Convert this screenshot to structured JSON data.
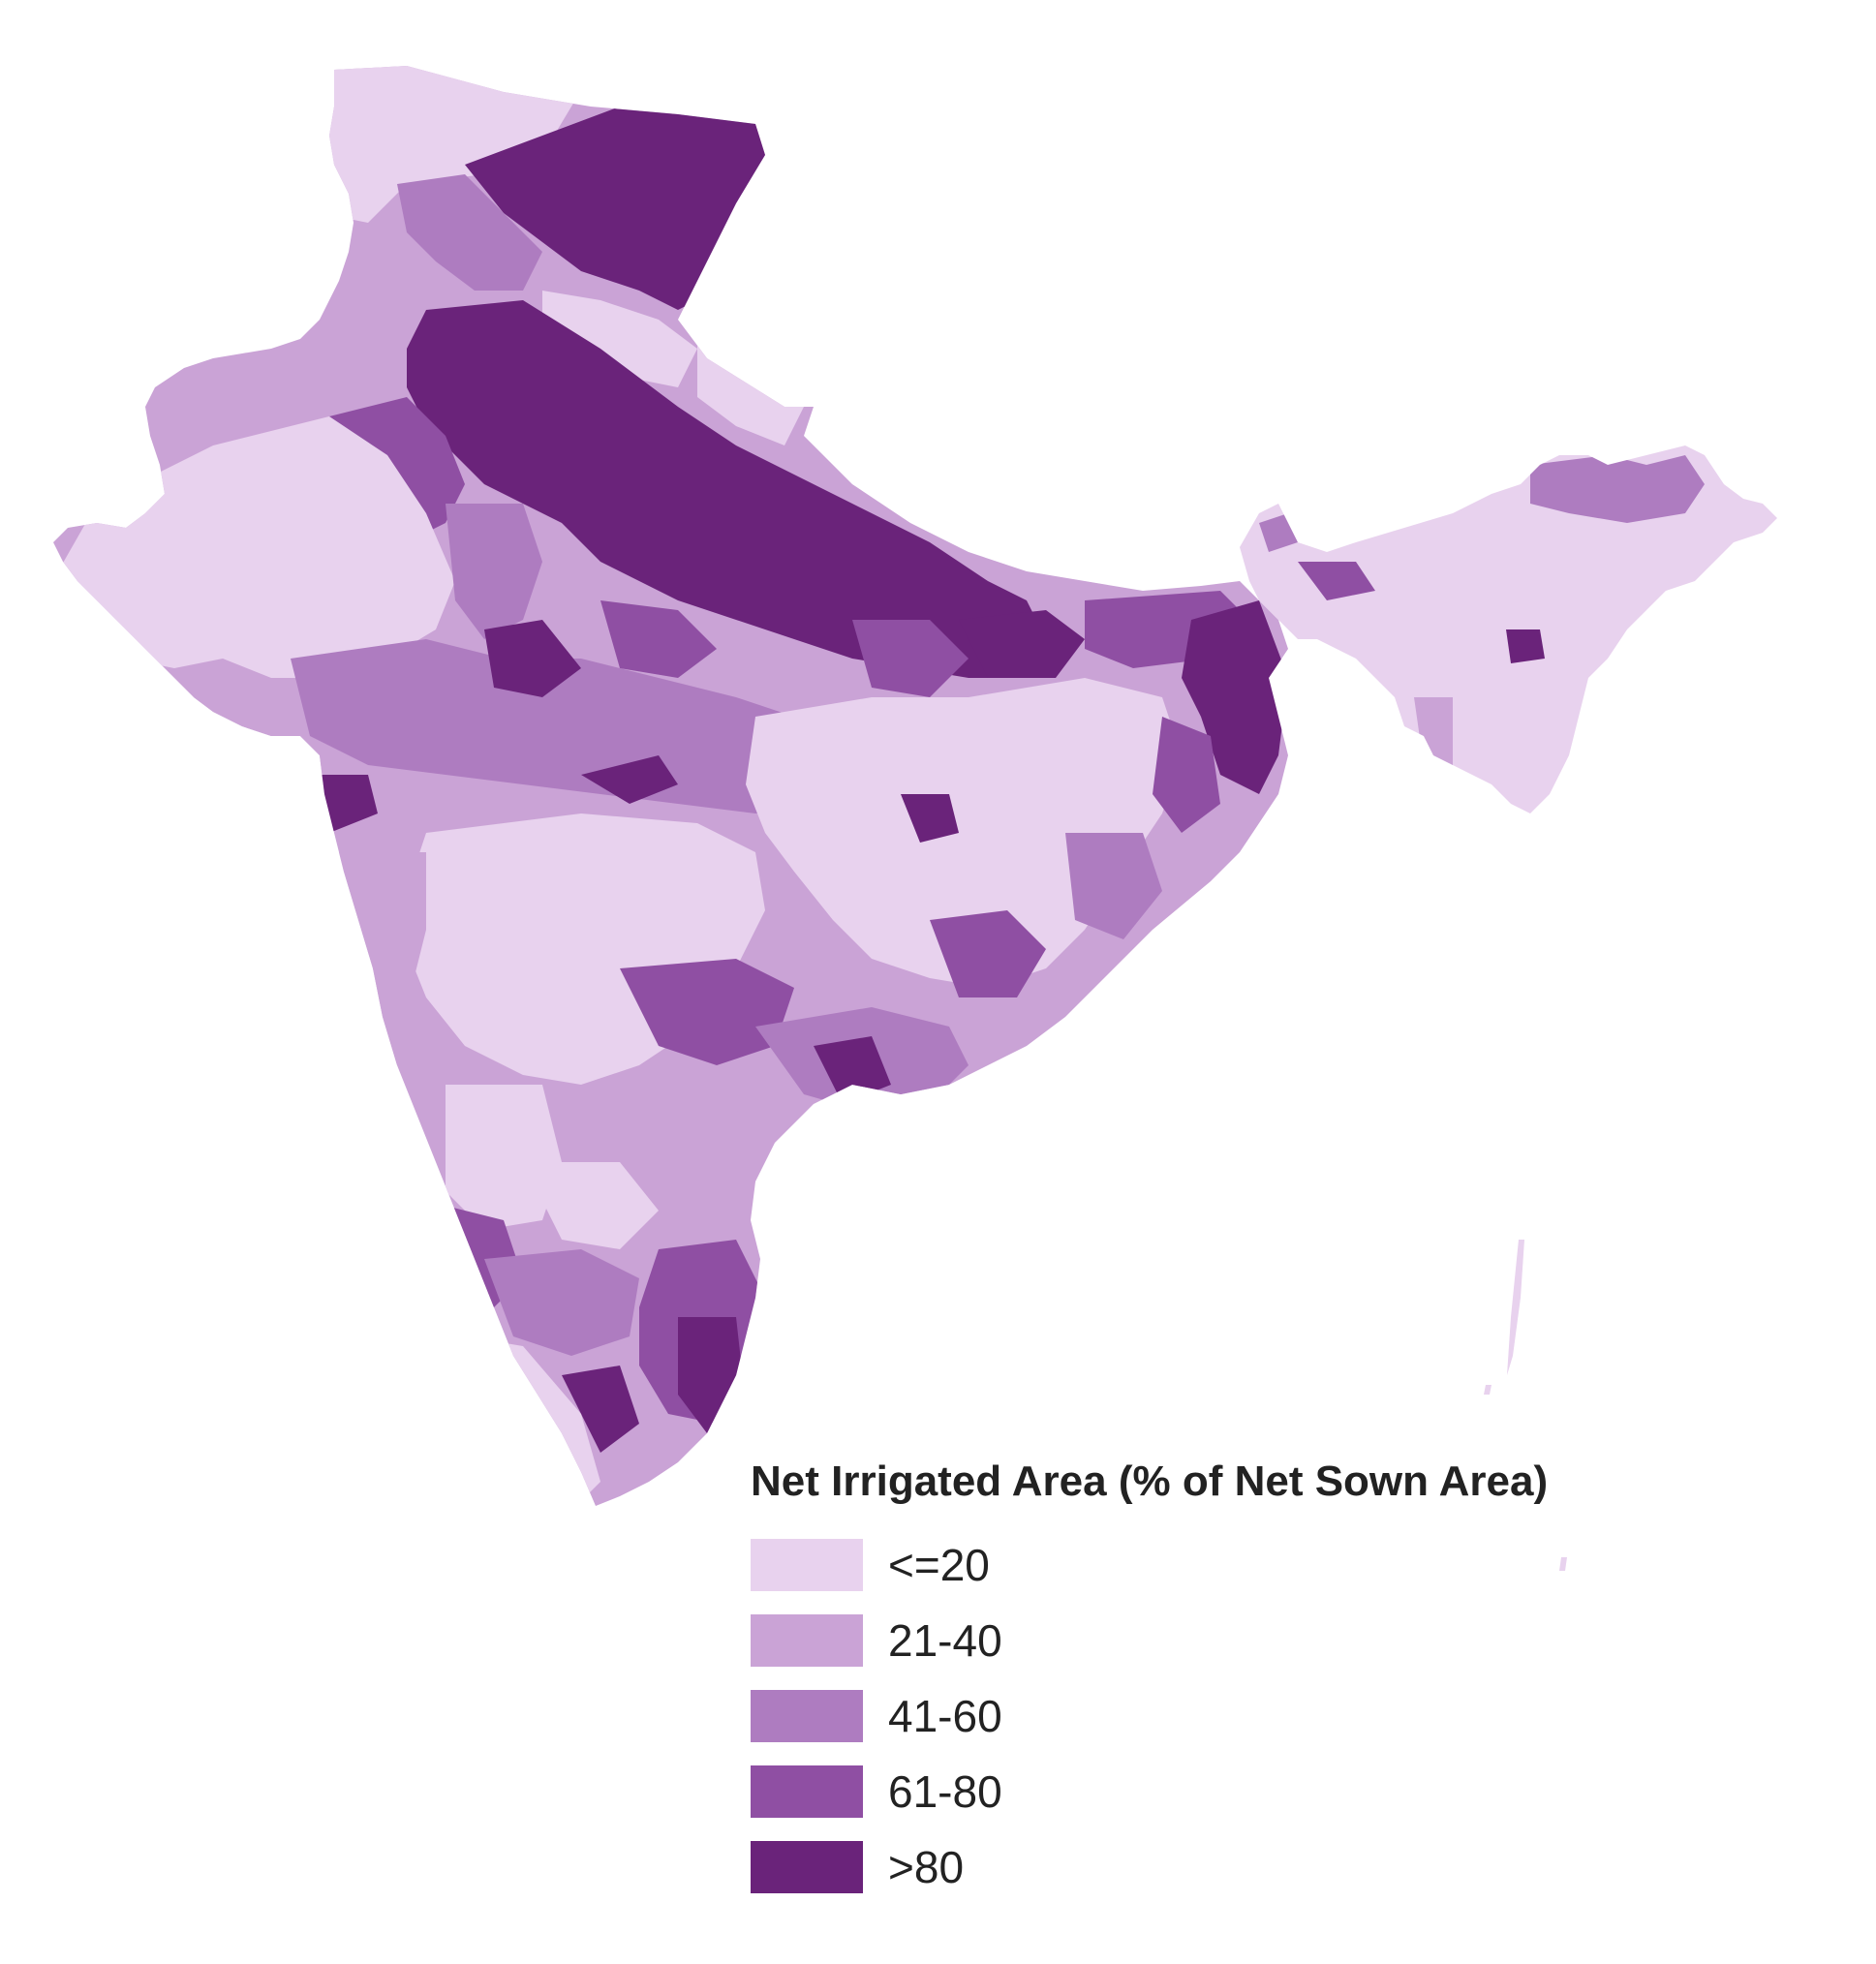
{
  "map": {
    "region": "India",
    "legend": {
      "title": "Net Irrigated Area (% of Net Sown Area)",
      "classes": [
        {
          "label": "<=20",
          "color": "#e8d2ee"
        },
        {
          "label": "21-40",
          "color": "#caa3d6"
        },
        {
          "label": "41-60",
          "color": "#ae7cc0"
        },
        {
          "label": "61-80",
          "color": "#8f4fa3"
        },
        {
          "label": ">80",
          "color": "#6a237a"
        }
      ]
    }
  }
}
